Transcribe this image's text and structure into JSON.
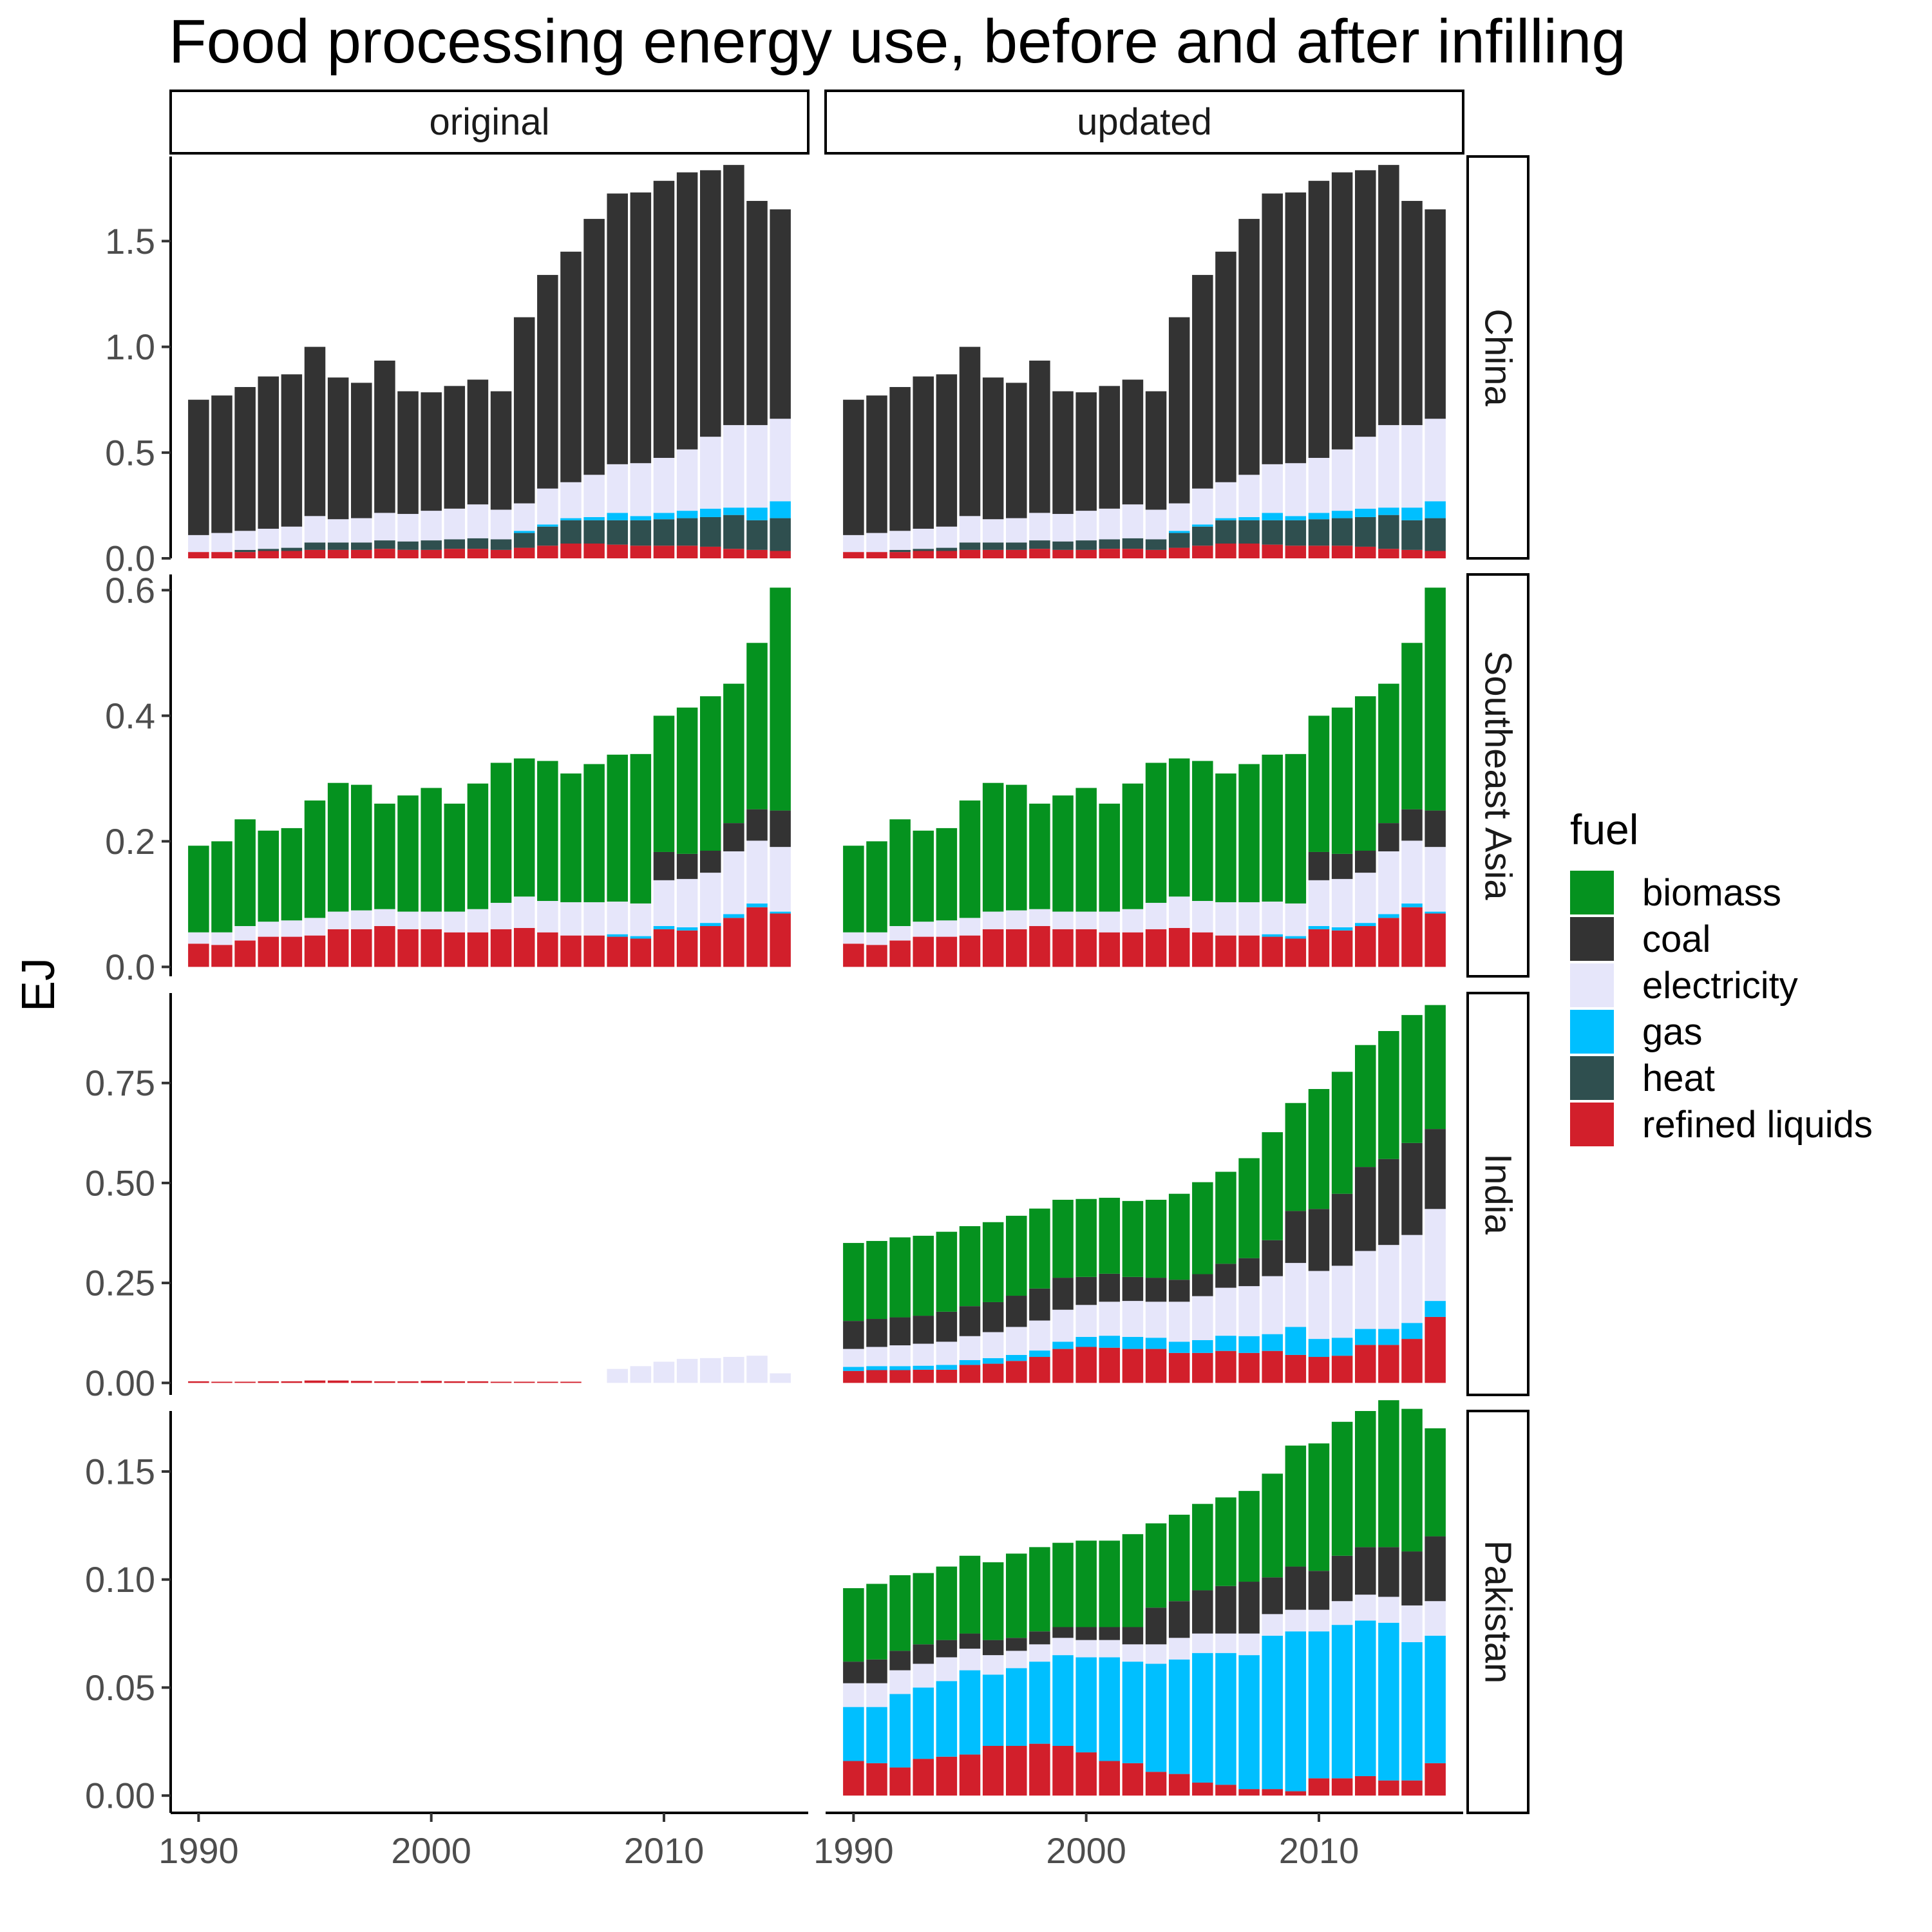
{
  "chart_data": {
    "type": "bar",
    "stacked": true,
    "title": "Food processing energy use, before and after infilling",
    "xlabel": "",
    "ylabel": "EJ",
    "x_ticks": [
      1990,
      2000,
      2010
    ],
    "years": [
      1990,
      1991,
      1992,
      1993,
      1994,
      1995,
      1996,
      1997,
      1998,
      1999,
      2000,
      2001,
      2002,
      2003,
      2004,
      2005,
      2006,
      2007,
      2008,
      2009,
      2010,
      2011,
      2012,
      2013,
      2014,
      2015
    ],
    "stack_order": [
      "refined liquids",
      "heat",
      "gas",
      "electricity",
      "coal",
      "biomass"
    ],
    "colors": {
      "biomass": "#05921f",
      "coal": "#333333",
      "electricity": "#e6e6fa",
      "gas": "#00bfff",
      "heat": "#2f4f4f",
      "refined liquids": "#d21f2b"
    },
    "legend": {
      "title": "fuel",
      "position": "right",
      "items": [
        "biomass",
        "coal",
        "electricity",
        "gas",
        "heat",
        "refined liquids"
      ]
    },
    "columns": [
      "original",
      "updated"
    ],
    "rows": [
      {
        "name": "China",
        "ylim": [
          0,
          1.9
        ],
        "yticks": [
          0.0,
          0.5,
          1.0,
          1.5
        ],
        "ytick_labels": [
          "0.0",
          "0.5",
          "1.0",
          "1.5"
        ],
        "series": {
          "refined liquids": [
            0.03,
            0.03,
            0.03,
            0.035,
            0.035,
            0.04,
            0.04,
            0.04,
            0.045,
            0.04,
            0.04,
            0.045,
            0.045,
            0.04,
            0.05,
            0.06,
            0.07,
            0.07,
            0.065,
            0.06,
            0.06,
            0.06,
            0.055,
            0.045,
            0.04,
            0.035
          ],
          "heat": [
            0.0,
            0.0,
            0.01,
            0.01,
            0.015,
            0.035,
            0.035,
            0.035,
            0.04,
            0.04,
            0.045,
            0.045,
            0.05,
            0.05,
            0.07,
            0.09,
            0.11,
            0.11,
            0.115,
            0.12,
            0.125,
            0.13,
            0.14,
            0.16,
            0.14,
            0.155
          ],
          "gas": [
            0.0,
            0.0,
            0.0,
            0.0,
            0.0,
            0.0,
            0.0,
            0.0,
            0.0,
            0.0,
            0.0,
            0.0,
            0.0,
            0.0,
            0.01,
            0.01,
            0.01,
            0.015,
            0.035,
            0.02,
            0.03,
            0.035,
            0.04,
            0.035,
            0.06,
            0.08
          ],
          "electricity": [
            0.08,
            0.09,
            0.09,
            0.095,
            0.1,
            0.125,
            0.11,
            0.115,
            0.13,
            0.13,
            0.14,
            0.145,
            0.16,
            0.14,
            0.13,
            0.17,
            0.17,
            0.2,
            0.23,
            0.25,
            0.26,
            0.29,
            0.34,
            0.39,
            0.39,
            0.39
          ],
          "coal": [
            0.64,
            0.65,
            0.68,
            0.72,
            0.72,
            0.8,
            0.67,
            0.64,
            0.72,
            0.58,
            0.56,
            0.58,
            0.59,
            0.56,
            0.88,
            1.01,
            1.09,
            1.21,
            1.28,
            1.28,
            1.31,
            1.31,
            1.26,
            1.23,
            1.06,
            0.99
          ]
        },
        "panels": {
          "original": [
            "refined liquids",
            "heat",
            "gas",
            "electricity",
            "coal"
          ],
          "updated": [
            "refined liquids",
            "heat",
            "gas",
            "electricity",
            "coal"
          ]
        }
      },
      {
        "name": "Southeast Asia",
        "ylim": [
          -0.015,
          0.625
        ],
        "yticks": [
          0.0,
          0.2,
          0.4,
          0.6
        ],
        "ytick_labels": [
          "0.0",
          "0.2",
          "0.4",
          "0.6"
        ],
        "series": {
          "refined liquids": [
            0.037,
            0.035,
            0.042,
            0.048,
            0.048,
            0.05,
            0.06,
            0.06,
            0.065,
            0.06,
            0.06,
            0.055,
            0.055,
            0.06,
            0.062,
            0.055,
            0.05,
            0.05,
            0.048,
            0.045,
            0.06,
            0.058,
            0.065,
            0.078,
            0.095,
            0.085
          ],
          "gas": [
            0.0,
            0.0,
            0.0,
            0.0,
            0.0,
            0.0,
            0.0,
            0.0,
            0.0,
            0.0,
            0.0,
            0.0,
            0.0,
            0.0,
            0.0,
            0.0,
            0.0,
            0.0,
            0.004,
            0.004,
            0.005,
            0.005,
            0.005,
            0.006,
            0.006,
            0.003
          ],
          "electricity": [
            0.018,
            0.02,
            0.023,
            0.024,
            0.026,
            0.028,
            0.028,
            0.03,
            0.027,
            0.028,
            0.028,
            0.033,
            0.037,
            0.042,
            0.05,
            0.05,
            0.053,
            0.053,
            0.052,
            0.052,
            0.073,
            0.077,
            0.08,
            0.1,
            0.1,
            0.103
          ],
          "coal": [
            0.0,
            0.0,
            0.0,
            0.0,
            0.0,
            0.0,
            0.0,
            0.0,
            0.0,
            0.0,
            0.0,
            0.0,
            0.0,
            0.0,
            0.0,
            0.0,
            0.0,
            0.0,
            0.0,
            0.0,
            0.045,
            0.04,
            0.035,
            0.045,
            0.05,
            0.058
          ],
          "biomass": [
            0.138,
            0.145,
            0.17,
            0.145,
            0.147,
            0.187,
            0.205,
            0.2,
            0.168,
            0.185,
            0.197,
            0.172,
            0.2,
            0.223,
            0.22,
            0.223,
            0.205,
            0.22,
            0.234,
            0.238,
            0.217,
            0.233,
            0.246,
            0.222,
            0.265,
            0.355
          ]
        },
        "panels": {
          "original": [
            "refined liquids",
            "gas",
            "electricity",
            "coal",
            "biomass"
          ],
          "updated": [
            "refined liquids",
            "gas",
            "electricity",
            "coal",
            "biomass"
          ]
        }
      },
      {
        "name": "India",
        "ylim": [
          -0.03,
          0.975
        ],
        "yticks": [
          0.0,
          0.25,
          0.5,
          0.75
        ],
        "ytick_labels": [
          "0.00",
          "0.25",
          "0.50",
          "0.75"
        ],
        "original_series": {
          "refined liquids": [
            0.004,
            0.003,
            0.003,
            0.004,
            0.004,
            0.006,
            0.006,
            0.005,
            0.004,
            0.004,
            0.005,
            0.004,
            0.004,
            0.003,
            0.003,
            0.003,
            0.003,
            0.0,
            0.0,
            0.0,
            0.0,
            0.0,
            0.0,
            0.0,
            0.0,
            0.0
          ],
          "electricity": [
            0.0,
            0.0,
            0.0,
            0.0,
            0.0,
            0.0,
            0.0,
            0.0,
            0.0,
            0.0,
            0.0,
            0.0,
            0.0,
            0.0,
            0.0,
            0.0,
            0.0,
            0.0,
            0.035,
            0.042,
            0.053,
            0.06,
            0.062,
            0.065,
            0.068,
            0.024
          ]
        },
        "series": {
          "refined liquids": [
            0.03,
            0.032,
            0.032,
            0.033,
            0.033,
            0.045,
            0.048,
            0.055,
            0.065,
            0.085,
            0.09,
            0.088,
            0.085,
            0.085,
            0.075,
            0.075,
            0.08,
            0.075,
            0.08,
            0.07,
            0.065,
            0.068,
            0.095,
            0.095,
            0.11,
            0.165
          ],
          "gas": [
            0.01,
            0.01,
            0.01,
            0.01,
            0.012,
            0.012,
            0.014,
            0.015,
            0.016,
            0.018,
            0.025,
            0.03,
            0.03,
            0.028,
            0.028,
            0.032,
            0.038,
            0.042,
            0.042,
            0.07,
            0.045,
            0.045,
            0.04,
            0.04,
            0.04,
            0.04
          ],
          "electricity": [
            0.045,
            0.048,
            0.052,
            0.055,
            0.058,
            0.06,
            0.065,
            0.07,
            0.075,
            0.08,
            0.08,
            0.085,
            0.09,
            0.09,
            0.1,
            0.11,
            0.12,
            0.125,
            0.145,
            0.16,
            0.17,
            0.18,
            0.195,
            0.21,
            0.22,
            0.23
          ],
          "coal": [
            0.07,
            0.07,
            0.07,
            0.07,
            0.075,
            0.075,
            0.075,
            0.078,
            0.08,
            0.08,
            0.07,
            0.07,
            0.06,
            0.06,
            0.055,
            0.055,
            0.06,
            0.07,
            0.09,
            0.13,
            0.155,
            0.18,
            0.21,
            0.215,
            0.23,
            0.2
          ],
          "biomass": [
            0.195,
            0.195,
            0.2,
            0.2,
            0.2,
            0.2,
            0.2,
            0.2,
            0.2,
            0.195,
            0.195,
            0.19,
            0.19,
            0.195,
            0.215,
            0.23,
            0.23,
            0.25,
            0.27,
            0.27,
            0.3,
            0.305,
            0.305,
            0.32,
            0.32,
            0.31
          ]
        },
        "panels": {
          "original": "original_series",
          "updated": [
            "refined liquids",
            "gas",
            "electricity",
            "coal",
            "biomass"
          ]
        }
      },
      {
        "name": "Pakistan",
        "ylim": [
          -0.008,
          0.178
        ],
        "yticks": [
          0.0,
          0.05,
          0.1,
          0.15
        ],
        "ytick_labels": [
          "0.00",
          "0.05",
          "0.10",
          "0.15"
        ],
        "series": {
          "refined liquids": [
            0.016,
            0.015,
            0.013,
            0.017,
            0.018,
            0.019,
            0.023,
            0.023,
            0.024,
            0.023,
            0.02,
            0.016,
            0.015,
            0.011,
            0.01,
            0.006,
            0.005,
            0.003,
            0.003,
            0.002,
            0.008,
            0.008,
            0.009,
            0.007,
            0.007,
            0.015
          ],
          "gas": [
            0.025,
            0.026,
            0.034,
            0.033,
            0.035,
            0.039,
            0.033,
            0.036,
            0.038,
            0.042,
            0.044,
            0.048,
            0.047,
            0.05,
            0.053,
            0.06,
            0.061,
            0.062,
            0.071,
            0.074,
            0.068,
            0.071,
            0.072,
            0.073,
            0.064,
            0.059
          ],
          "electricity": [
            0.011,
            0.011,
            0.011,
            0.011,
            0.011,
            0.01,
            0.009,
            0.008,
            0.008,
            0.008,
            0.008,
            0.008,
            0.008,
            0.009,
            0.01,
            0.009,
            0.009,
            0.01,
            0.01,
            0.01,
            0.01,
            0.011,
            0.012,
            0.012,
            0.017,
            0.016
          ],
          "coal": [
            0.01,
            0.011,
            0.009,
            0.009,
            0.008,
            0.007,
            0.007,
            0.006,
            0.006,
            0.005,
            0.006,
            0.006,
            0.008,
            0.017,
            0.017,
            0.02,
            0.022,
            0.024,
            0.017,
            0.02,
            0.018,
            0.021,
            0.022,
            0.023,
            0.025,
            0.03
          ],
          "biomass": [
            0.034,
            0.035,
            0.035,
            0.033,
            0.034,
            0.036,
            0.036,
            0.039,
            0.039,
            0.039,
            0.04,
            0.04,
            0.043,
            0.039,
            0.04,
            0.04,
            0.041,
            0.042,
            0.048,
            0.056,
            0.059,
            0.062,
            0.063,
            0.068,
            0.066,
            0.05
          ]
        },
        "panels": {
          "original": [],
          "updated": [
            "refined liquids",
            "gas",
            "electricity",
            "coal",
            "biomass"
          ]
        }
      }
    ]
  }
}
